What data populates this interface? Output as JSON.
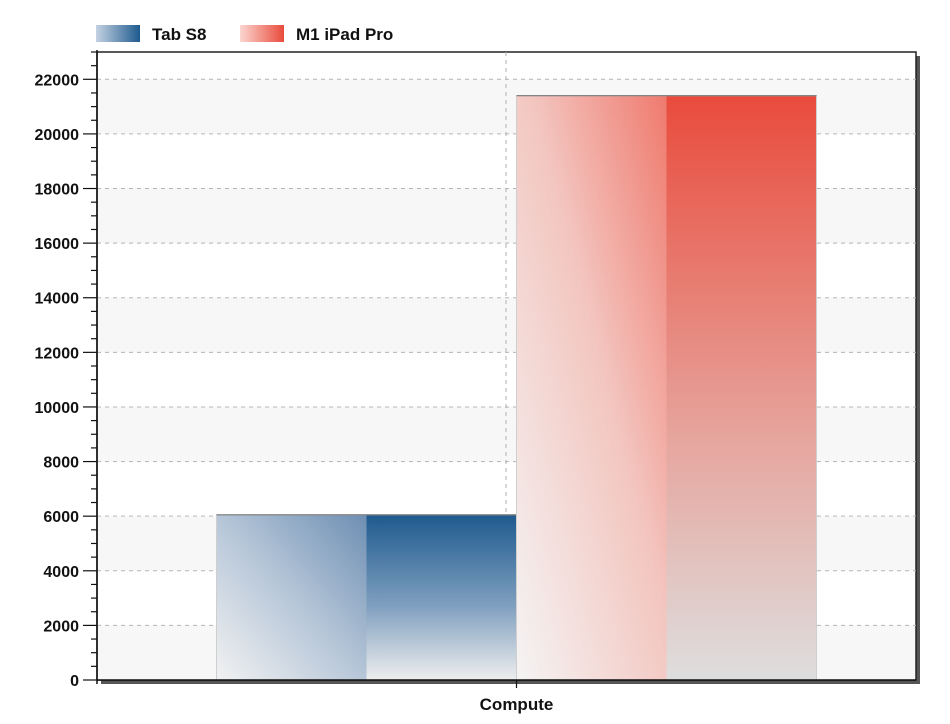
{
  "chart_data": {
    "type": "bar",
    "categories": [
      "Compute"
    ],
    "series": [
      {
        "name": "Tab S8",
        "values": [
          6050
        ],
        "color": "#1e5a8e"
      },
      {
        "name": "M1 iPad Pro",
        "values": [
          21400
        ],
        "color": "#e94b3c"
      }
    ],
    "title": "",
    "xlabel": "",
    "ylabel": "",
    "ylim": [
      0,
      23000
    ],
    "yticks": [
      0,
      2000,
      4000,
      6000,
      8000,
      10000,
      12000,
      14000,
      16000,
      18000,
      20000,
      22000
    ],
    "grid": true,
    "legend_position": "top-left"
  }
}
